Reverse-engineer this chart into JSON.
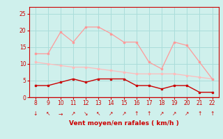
{
  "x": [
    8,
    9,
    10,
    11,
    12,
    13,
    14,
    15,
    16,
    17,
    18,
    19,
    20,
    21,
    22
  ],
  "rafales": [
    13,
    13,
    19.5,
    16.5,
    21,
    21,
    19,
    16.5,
    16.5,
    10.5,
    8.5,
    16.5,
    15.5,
    10.5,
    5.5
  ],
  "vent_moyen_light": [
    10.5,
    10,
    9.5,
    9,
    9,
    8.5,
    8,
    7.5,
    7,
    7,
    7,
    7,
    6.5,
    6,
    5.5
  ],
  "vent_moyen": [
    3.5,
    3.5,
    4.5,
    5.5,
    4.5,
    5.5,
    5.5,
    5.5,
    3.5,
    3.5,
    2.5,
    3.5,
    3.5,
    1.5,
    1.5
  ],
  "bg_color": "#cff0ec",
  "grid_color": "#aaddda",
  "line_color_rafales": "#ff9999",
  "line_color_light": "#ffbbbb",
  "line_color_dark": "#cc0000",
  "xlabel": "Vent moyen/en rafales ( km/h )",
  "ylabel_ticks": [
    0,
    5,
    10,
    15,
    20,
    25
  ],
  "ylim": [
    0,
    27
  ],
  "xlim": [
    7.5,
    22.5
  ],
  "xlabel_color": "#cc0000",
  "tick_color": "#cc0000",
  "spine_color": "#cc0000",
  "arrows": [
    "↓",
    "↖",
    "→",
    "↗",
    "↘",
    "↖",
    "↗",
    "↗",
    "↑",
    "↑",
    "↗",
    "↗",
    "↗",
    "↑",
    "↑"
  ]
}
